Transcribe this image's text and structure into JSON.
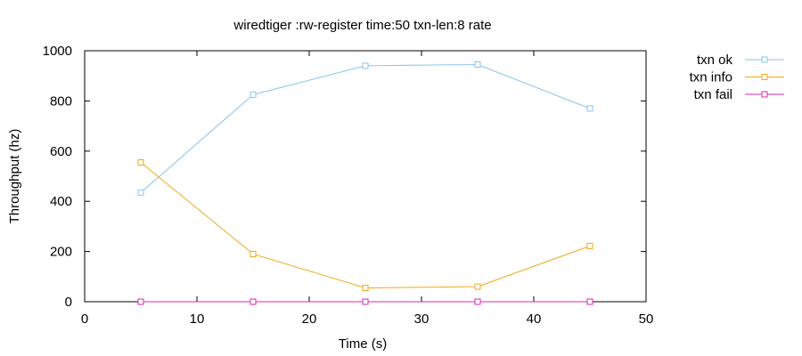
{
  "chart_data": {
    "type": "line",
    "title": "wiredtiger :rw-register time:50 txn-len:8 rate",
    "xlabel": "Time (s)",
    "ylabel": "Throughput (hz)",
    "xlim": [
      0,
      50
    ],
    "ylim": [
      0,
      1000
    ],
    "xticks": [
      "0",
      "10",
      "20",
      "30",
      "40",
      "50"
    ],
    "yticks": [
      "0",
      "200",
      "400",
      "600",
      "800",
      "1000"
    ],
    "grid": false,
    "legend_position": "outside-top-right",
    "marker": "open-square",
    "x": [
      5,
      15,
      25,
      35,
      45
    ],
    "series": [
      {
        "name": "txn ok",
        "color": "#87c6ea",
        "values": [
          435,
          825,
          940,
          945,
          770
        ]
      },
      {
        "name": "txn info",
        "color": "#f0a81a",
        "values": [
          555,
          190,
          55,
          60,
          222
        ]
      },
      {
        "name": "txn fail",
        "color": "#d42bab",
        "values": [
          0,
          0,
          0,
          0,
          0
        ]
      }
    ]
  }
}
